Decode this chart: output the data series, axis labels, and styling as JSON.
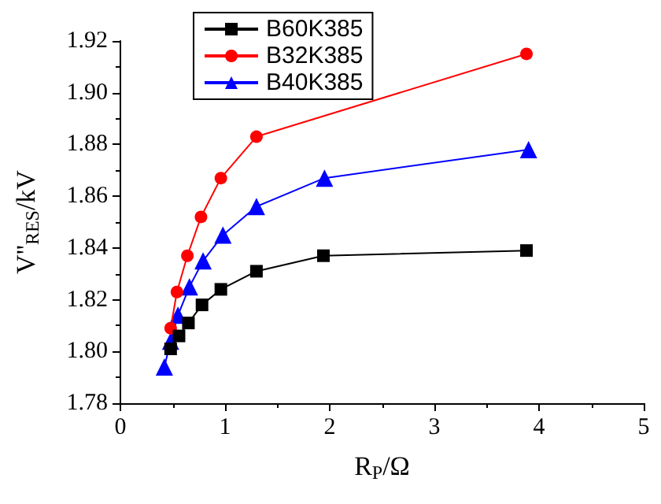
{
  "chart_data": {
    "type": "line",
    "xlabel": "R$_{P}$/Ω",
    "ylabel": "V''$_{RES}$/kV",
    "xlim": [
      0,
      5
    ],
    "xticks": [
      0,
      1,
      2,
      3,
      4,
      5
    ],
    "ylim": [
      1.78,
      1.92
    ],
    "yticks": [
      1.78,
      {
        "value": 1.8,
        "label": "1.80"
      },
      1.82,
      1.84,
      1.86,
      1.88,
      {
        "value": 1.9,
        "label": "1.90"
      },
      1.92
    ],
    "grid": false,
    "legend": "top left",
    "series": [
      {
        "name": "B60K385",
        "color": "#000000",
        "marker": "square",
        "x": [
          0.48,
          0.56,
          0.65,
          0.78,
          0.96,
          1.3,
          1.94,
          3.88
        ],
        "values": [
          1.801,
          1.806,
          1.811,
          1.818,
          1.824,
          1.831,
          1.837,
          1.839
        ]
      },
      {
        "name": "B32K385",
        "color": "#ff0000",
        "marker": "circle",
        "x": [
          0.48,
          0.54,
          0.64,
          0.77,
          0.96,
          1.3,
          1.94,
          3.88
        ],
        "values": [
          1.809,
          1.823,
          1.837,
          1.852,
          1.867,
          1.883,
          null,
          1.915
        ]
      },
      {
        "name": "B40K385",
        "color": "#0000ff",
        "marker": "triangle",
        "x": [
          0.42,
          0.48,
          0.55,
          0.66,
          0.79,
          0.98,
          1.3,
          1.95,
          3.9
        ],
        "values": [
          1.794,
          1.804,
          1.814,
          1.825,
          1.835,
          1.845,
          1.856,
          1.867,
          1.878
        ]
      }
    ]
  }
}
